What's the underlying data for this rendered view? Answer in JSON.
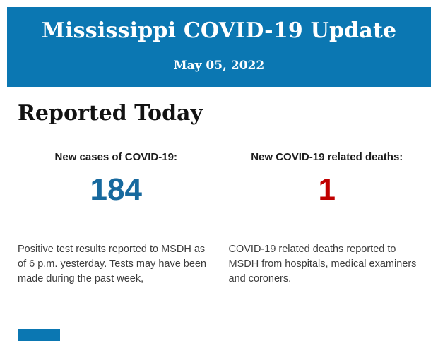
{
  "header": {
    "title": "Mississippi COVID-19 Update",
    "date": "May 05, 2022"
  },
  "section": {
    "heading": "Reported Today"
  },
  "stats": [
    {
      "id": "new-cases",
      "label": "New cases of COVID-19:",
      "value": "184",
      "value_color": "#17699e",
      "description": "Positive test results reported to MSDH as of 6 p.m. yesterday. Tests may have been made during the past week,"
    },
    {
      "id": "new-deaths",
      "label": "New COVID-19 related deaths:",
      "value": "1",
      "value_color": "#c00000",
      "description": "COVID-19 related deaths reported to MSDH from hospitals, medical examiners and coroners."
    }
  ],
  "colors": {
    "header_bg": "#0b77b2",
    "header_text": "#ffffff",
    "cases_value": "#17699e",
    "deaths_value": "#c00000",
    "body_text": "#3d3d3d"
  }
}
